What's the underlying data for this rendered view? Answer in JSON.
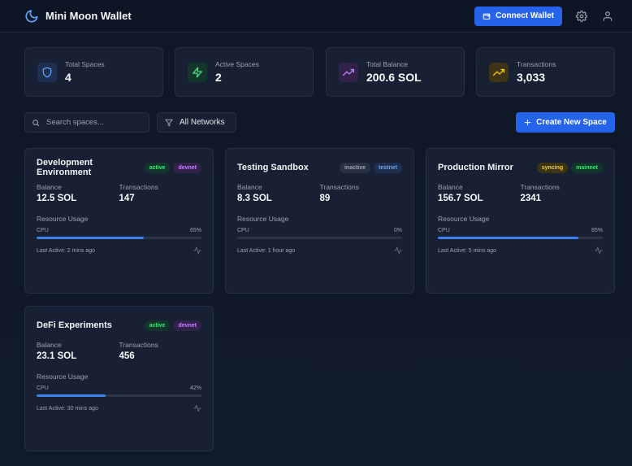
{
  "app": {
    "title": "Mini Moon Wallet"
  },
  "header": {
    "connect_label": "Connect Wallet"
  },
  "stats": [
    {
      "label": "Total Spaces",
      "value": "4",
      "icon": "shield-icon",
      "color": "#60a5fa",
      "bg": "#1e2f52"
    },
    {
      "label": "Active Spaces",
      "value": "2",
      "icon": "bolt-icon",
      "color": "#4ade80",
      "bg": "#14352b"
    },
    {
      "label": "Total Balance",
      "value": "200.6 SOL",
      "icon": "trending-up-icon",
      "color": "#c084fc",
      "bg": "#32224a"
    },
    {
      "label": "Transactions",
      "value": "3,033",
      "icon": "trending-up-icon",
      "color": "#facc15",
      "bg": "#3d3415"
    }
  ],
  "toolbar": {
    "search_placeholder": "Search spaces...",
    "filter_label": "All Networks",
    "create_label": "Create New Space"
  },
  "labels": {
    "balance": "Balance",
    "transactions": "Transactions",
    "resource_usage": "Resource Usage",
    "cpu": "CPU"
  },
  "spaces": [
    {
      "name": "Development Environment",
      "status": "active",
      "network": "devnet",
      "balance": "12.5 SOL",
      "transactions": "147",
      "cpu_label": "65%",
      "cpu": 0.65,
      "last_active": "Last Active: 2 mins ago"
    },
    {
      "name": "Testing Sandbox",
      "status": "inactive",
      "network": "testnet",
      "balance": "8.3 SOL",
      "transactions": "89",
      "cpu_label": "0%",
      "cpu": 0.0,
      "last_active": "Last Active: 1 hour ago"
    },
    {
      "name": "Production Mirror",
      "status": "syncing",
      "network": "mainnet",
      "balance": "156.7 SOL",
      "transactions": "2341",
      "cpu_label": "85%",
      "cpu": 0.85,
      "last_active": "Last Active: 5 mins ago"
    },
    {
      "name": "DeFi Experiments",
      "status": "active",
      "network": "devnet",
      "balance": "23.1 SOL",
      "transactions": "456",
      "cpu_label": "42%",
      "cpu": 0.42,
      "last_active": "Last Active: 30 mins ago"
    }
  ],
  "colors": {
    "accent": "#2563eb",
    "bar": "#3b82f6",
    "brand_icon": "#60a5fa"
  }
}
